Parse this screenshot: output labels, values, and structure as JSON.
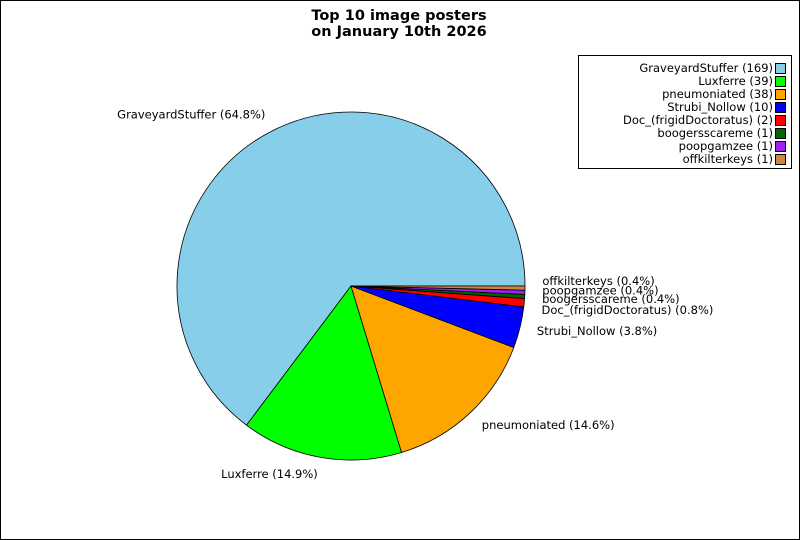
{
  "chart_data": {
    "type": "pie",
    "title": [
      "Top 10 image posters",
      "on January 10th 2026"
    ],
    "slices": [
      {
        "name": "GraveyardStuffer",
        "value": 169,
        "label": "GraveyardStuffer (64.8%)",
        "legend": "GraveyardStuffer (169)",
        "color": "#87ceeb"
      },
      {
        "name": "Luxferre",
        "value": 39,
        "label": "Luxferre (14.9%)",
        "legend": "Luxferre (39)",
        "color": "#00ff00"
      },
      {
        "name": "pneumoniated",
        "value": 38,
        "label": "pneumoniated (14.6%)",
        "legend": "pneumoniated (38)",
        "color": "#ffa500"
      },
      {
        "name": "Strubi_Nollow",
        "value": 10,
        "label": "Strubi_Nollow (3.8%)",
        "legend": "Strubi_Nollow (10)",
        "color": "#0000ff"
      },
      {
        "name": "Doc_(frigidDoctoratus)",
        "value": 2,
        "label": "Doc_(frigidDoctoratus) (0.8%)",
        "legend": "Doc_(frigidDoctoratus) (2)",
        "color": "#ff0000"
      },
      {
        "name": "boogersscareme",
        "value": 1,
        "label": "boogersscareme (0.4%)",
        "legend": "boogersscareme (1)",
        "color": "#006400"
      },
      {
        "name": "poopgamzee",
        "value": 1,
        "label": "poopgamzee (0.4%)",
        "legend": "poopgamzee (1)",
        "color": "#a020f0"
      },
      {
        "name": "offkilterkeys",
        "value": 1,
        "label": "offkilterkeys (0.4%)",
        "legend": "offkilterkeys (1)",
        "color": "#cd853f"
      }
    ],
    "start_angle_deg": 0,
    "direction": "counterclockwise",
    "legend_position": "top-right"
  }
}
